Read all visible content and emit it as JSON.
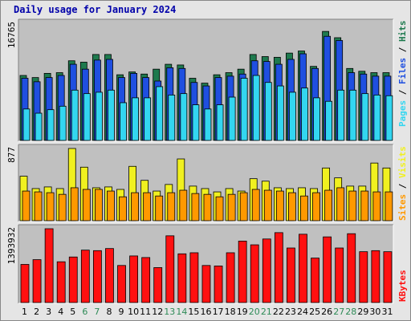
{
  "title": "Daily usage for January 2024",
  "colors": {
    "hits": "#1e7a4e",
    "files": "#1f4fe0",
    "pages": "#33d6f0",
    "visits": "#f0f020",
    "sites": "#ff9900",
    "kbytes": "#ff1010",
    "weekend_label": "#2e8b57",
    "weekday_label": "#000000",
    "panel_bg": "#c0c0c0"
  },
  "labels": {
    "hits": "Hits",
    "files": "Files",
    "pages": "Pages",
    "visits": "Visits",
    "sites": "Sites",
    "kbytes": "KBytes",
    "sep": " / "
  },
  "chart_data": [
    {
      "type": "bar",
      "panel": "hits-files-pages",
      "ymax_label": "16765",
      "ylim": [
        0,
        16765
      ],
      "categories": [
        "1",
        "2",
        "3",
        "4",
        "5",
        "6",
        "7",
        "8",
        "9",
        "10",
        "11",
        "12",
        "13",
        "14",
        "15",
        "16",
        "17",
        "18",
        "19",
        "20",
        "21",
        "22",
        "23",
        "24",
        "25",
        "26",
        "27",
        "28",
        "29",
        "30",
        "31"
      ],
      "weekend_days": [
        "6",
        "7",
        "13",
        "14",
        "20",
        "21",
        "27",
        "28"
      ],
      "series": [
        {
          "name": "Hits",
          "values": [
            9300,
            9000,
            9600,
            9700,
            11400,
            11200,
            12300,
            12300,
            9400,
            9800,
            9500,
            10200,
            10900,
            10800,
            8900,
            8200,
            9400,
            9700,
            10200,
            12300,
            12000,
            11900,
            12500,
            12800,
            10600,
            15600,
            14700,
            10300,
            9900,
            9700,
            9700
          ]
        },
        {
          "name": "Files",
          "values": [
            8900,
            8400,
            9000,
            9300,
            10900,
            10200,
            11500,
            11600,
            9000,
            9600,
            9000,
            8500,
            10400,
            10300,
            8300,
            7800,
            9000,
            9200,
            9500,
            11400,
            11300,
            10900,
            11600,
            12400,
            10300,
            14900,
            14300,
            9700,
            9500,
            9200,
            9200
          ]
        },
        {
          "name": "Pages",
          "values": [
            4500,
            3900,
            4400,
            4900,
            7200,
            6700,
            6900,
            7200,
            5400,
            6100,
            6100,
            7700,
            6500,
            6700,
            5100,
            4500,
            5100,
            6200,
            8900,
            9300,
            8300,
            7800,
            6900,
            7500,
            6100,
            5600,
            7200,
            7200,
            6700,
            6500,
            6400
          ]
        }
      ]
    },
    {
      "type": "bar",
      "panel": "visits-sites",
      "ymax_label": "877",
      "ylim": [
        0,
        877
      ],
      "categories": [
        "1",
        "2",
        "3",
        "4",
        "5",
        "6",
        "7",
        "8",
        "9",
        "10",
        "11",
        "12",
        "13",
        "14",
        "15",
        "16",
        "17",
        "18",
        "19",
        "20",
        "21",
        "22",
        "23",
        "24",
        "25",
        "26",
        "27",
        "28",
        "29",
        "30",
        "31"
      ],
      "series": [
        {
          "name": "Visits",
          "values": [
            540,
            390,
            410,
            390,
            877,
            650,
            400,
            410,
            380,
            660,
            490,
            360,
            440,
            750,
            420,
            390,
            350,
            390,
            360,
            510,
            480,
            400,
            390,
            400,
            390,
            640,
            520,
            420,
            420,
            700,
            640
          ]
        },
        {
          "name": "Sites",
          "values": [
            360,
            350,
            340,
            320,
            400,
            380,
            380,
            360,
            290,
            340,
            340,
            300,
            340,
            370,
            330,
            320,
            290,
            320,
            340,
            380,
            370,
            360,
            340,
            300,
            340,
            370,
            400,
            360,
            360,
            350,
            350
          ]
        }
      ]
    },
    {
      "type": "bar",
      "panel": "kbytes",
      "ymax_label": "1393932",
      "ylim": [
        0,
        1393932
      ],
      "categories": [
        "1",
        "2",
        "3",
        "4",
        "5",
        "6",
        "7",
        "8",
        "9",
        "10",
        "11",
        "12",
        "13",
        "14",
        "15",
        "16",
        "17",
        "18",
        "19",
        "20",
        "21",
        "22",
        "23",
        "24",
        "25",
        "26",
        "27",
        "28",
        "29",
        "30",
        "31"
      ],
      "series": [
        {
          "name": "KBytes",
          "values": [
            720000,
            810000,
            1393932,
            770000,
            860000,
            990000,
            980000,
            1020000,
            700000,
            880000,
            850000,
            660000,
            1260000,
            920000,
            940000,
            700000,
            690000,
            940000,
            1160000,
            1090000,
            1200000,
            1320000,
            1030000,
            1290000,
            840000,
            1240000,
            1030000,
            1300000,
            960000,
            980000,
            960000
          ]
        }
      ]
    }
  ]
}
